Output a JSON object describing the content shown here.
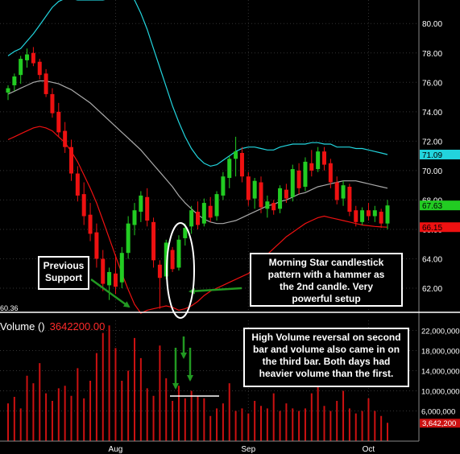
{
  "volume_label": "Volume ()",
  "volume_value": "3642200.00",
  "annotations": {
    "previous_support": "Previous\nSupport",
    "morning_star": "Morning Star candlestick\npattern with a hammer as\nthe 2nd candle.  Very\npowerful setup",
    "high_volume": "High Volume reversal on second\nbar and volume also came in on\nthe third bar.  Both days had\nheavier volume than the first."
  },
  "colors": {
    "up": "#22cc22",
    "down": "#ee1111",
    "upper_band": "#22d4dd",
    "middle_band": "#aaaaaa",
    "lower_band": "#ee1111",
    "volume": "#cc1111",
    "annotation_arrow": "#229922"
  },
  "chart_data": [
    {
      "type": "candlestick",
      "title": "",
      "overlay": "bollinger_bands",
      "ylim": [
        60.36,
        81.6
      ],
      "yticks": [
        "62.00",
        "64.00",
        "66.00",
        "68.00",
        "70.00",
        "72.00",
        "74.00",
        "76.00",
        "78.00",
        "80.00"
      ],
      "ytick_values": [
        62,
        64,
        66,
        68,
        70,
        72,
        74,
        76,
        78,
        80
      ],
      "price_tags": [
        {
          "label": "71.09",
          "value": 71.09,
          "color": "#22d4dd"
        },
        {
          "label": "67.63",
          "value": 67.63,
          "color": "#22cc22"
        },
        {
          "label": "66.15",
          "value": 66.15,
          "color": "#ee1111"
        }
      ],
      "support_level": {
        "label": "60.36",
        "value": 60.36
      },
      "x_labels": [
        {
          "label": "Aug",
          "index": 17
        },
        {
          "label": "Sep",
          "index": 38
        },
        {
          "label": "Oct",
          "index": 57
        }
      ],
      "candles": [
        {
          "o": 75.3,
          "h": 75.8,
          "l": 74.8,
          "c": 75.6
        },
        {
          "o": 75.8,
          "h": 76.6,
          "l": 75.4,
          "c": 76.4
        },
        {
          "o": 76.5,
          "h": 77.8,
          "l": 75.9,
          "c": 77.6
        },
        {
          "o": 77.5,
          "h": 78.3,
          "l": 77.0,
          "c": 77.9
        },
        {
          "o": 78.0,
          "h": 78.4,
          "l": 77.1,
          "c": 77.3
        },
        {
          "o": 77.4,
          "h": 77.6,
          "l": 76.2,
          "c": 76.5
        },
        {
          "o": 76.6,
          "h": 76.9,
          "l": 75.0,
          "c": 75.2
        },
        {
          "o": 75.2,
          "h": 75.6,
          "l": 73.6,
          "c": 73.9
        },
        {
          "o": 74.0,
          "h": 74.6,
          "l": 72.3,
          "c": 72.6
        },
        {
          "o": 72.7,
          "h": 73.3,
          "l": 71.2,
          "c": 71.6
        },
        {
          "o": 71.6,
          "h": 72.1,
          "l": 69.3,
          "c": 69.8
        },
        {
          "o": 69.8,
          "h": 70.3,
          "l": 67.9,
          "c": 68.3
        },
        {
          "o": 68.4,
          "h": 69.2,
          "l": 66.3,
          "c": 66.9
        },
        {
          "o": 67.0,
          "h": 67.8,
          "l": 65.2,
          "c": 65.7
        },
        {
          "o": 65.8,
          "h": 66.4,
          "l": 63.4,
          "c": 64.0
        },
        {
          "o": 64.0,
          "h": 64.6,
          "l": 61.8,
          "c": 62.3
        },
        {
          "o": 62.2,
          "h": 63.4,
          "l": 61.2,
          "c": 63.1
        },
        {
          "o": 63.0,
          "h": 64.3,
          "l": 61.6,
          "c": 62.1
        },
        {
          "o": 62.4,
          "h": 64.8,
          "l": 62.0,
          "c": 64.4
        },
        {
          "o": 64.4,
          "h": 66.9,
          "l": 64.0,
          "c": 66.4
        },
        {
          "o": 66.3,
          "h": 67.8,
          "l": 65.6,
          "c": 67.3
        },
        {
          "o": 67.2,
          "h": 68.6,
          "l": 66.5,
          "c": 68.3
        },
        {
          "o": 68.2,
          "h": 68.8,
          "l": 66.2,
          "c": 66.6
        },
        {
          "o": 66.5,
          "h": 66.8,
          "l": 63.4,
          "c": 63.9
        },
        {
          "o": 63.6,
          "h": 63.9,
          "l": 60.6,
          "c": 62.7
        },
        {
          "o": 62.8,
          "h": 65.3,
          "l": 62.6,
          "c": 65.1
        },
        {
          "o": 64.6,
          "h": 64.8,
          "l": 63.1,
          "c": 63.3
        },
        {
          "o": 63.4,
          "h": 65.6,
          "l": 63.2,
          "c": 65.3
        },
        {
          "o": 65.4,
          "h": 66.4,
          "l": 64.9,
          "c": 66.1
        },
        {
          "o": 66.2,
          "h": 67.6,
          "l": 65.7,
          "c": 67.3
        },
        {
          "o": 67.2,
          "h": 67.9,
          "l": 66.0,
          "c": 66.3
        },
        {
          "o": 66.4,
          "h": 68.1,
          "l": 66.2,
          "c": 67.8
        },
        {
          "o": 67.6,
          "h": 68.2,
          "l": 66.5,
          "c": 66.8
        },
        {
          "o": 66.9,
          "h": 68.6,
          "l": 66.6,
          "c": 68.4
        },
        {
          "o": 68.3,
          "h": 69.9,
          "l": 68.0,
          "c": 69.6
        },
        {
          "o": 69.5,
          "h": 71.0,
          "l": 68.8,
          "c": 70.8
        },
        {
          "o": 70.8,
          "h": 72.3,
          "l": 69.6,
          "c": 71.3
        },
        {
          "o": 71.2,
          "h": 71.6,
          "l": 69.2,
          "c": 69.6
        },
        {
          "o": 69.6,
          "h": 69.9,
          "l": 67.6,
          "c": 68.0
        },
        {
          "o": 68.1,
          "h": 69.5,
          "l": 67.4,
          "c": 69.3
        },
        {
          "o": 69.2,
          "h": 69.6,
          "l": 67.1,
          "c": 67.5
        },
        {
          "o": 67.4,
          "h": 68.3,
          "l": 66.8,
          "c": 67.9
        },
        {
          "o": 67.8,
          "h": 68.0,
          "l": 67.0,
          "c": 67.3
        },
        {
          "o": 67.4,
          "h": 69.0,
          "l": 67.1,
          "c": 68.8
        },
        {
          "o": 68.7,
          "h": 69.1,
          "l": 67.8,
          "c": 68.1
        },
        {
          "o": 68.2,
          "h": 70.4,
          "l": 67.9,
          "c": 70.1
        },
        {
          "o": 70.0,
          "h": 70.5,
          "l": 68.4,
          "c": 68.8
        },
        {
          "o": 68.9,
          "h": 70.9,
          "l": 68.6,
          "c": 70.6
        },
        {
          "o": 70.5,
          "h": 71.4,
          "l": 69.6,
          "c": 70.0
        },
        {
          "o": 70.1,
          "h": 71.6,
          "l": 69.9,
          "c": 71.3
        },
        {
          "o": 71.3,
          "h": 71.6,
          "l": 70.0,
          "c": 70.4
        },
        {
          "o": 70.5,
          "h": 70.8,
          "l": 68.8,
          "c": 69.2
        },
        {
          "o": 69.2,
          "h": 69.6,
          "l": 67.7,
          "c": 68.0
        },
        {
          "o": 68.1,
          "h": 69.3,
          "l": 67.6,
          "c": 69.0
        },
        {
          "o": 68.9,
          "h": 69.1,
          "l": 66.9,
          "c": 67.2
        },
        {
          "o": 67.3,
          "h": 67.6,
          "l": 66.2,
          "c": 66.5
        },
        {
          "o": 66.5,
          "h": 67.5,
          "l": 66.3,
          "c": 67.3
        },
        {
          "o": 67.3,
          "h": 67.8,
          "l": 66.6,
          "c": 66.9
        },
        {
          "o": 66.9,
          "h": 67.6,
          "l": 66.5,
          "c": 67.3
        },
        {
          "o": 67.2,
          "h": 67.4,
          "l": 66.1,
          "c": 66.4
        },
        {
          "o": 66.4,
          "h": 68.0,
          "l": 66.0,
          "c": 67.63
        }
      ],
      "upper_band": [
        77.8,
        78.1,
        78.3,
        78.8,
        79.3,
        79.9,
        80.5,
        81.1,
        81.5,
        81.7,
        81.7,
        81.6,
        81.6,
        81.6,
        81.6,
        81.6,
        81.7,
        81.7,
        81.8,
        81.9,
        81.6,
        80.7,
        79.6,
        78.3,
        77.0,
        75.7,
        74.4,
        73.3,
        72.3,
        71.5,
        70.9,
        70.5,
        70.3,
        70.4,
        70.7,
        71.0,
        71.3,
        71.5,
        71.6,
        71.6,
        71.5,
        71.4,
        71.4,
        71.6,
        71.7,
        71.8,
        71.8,
        71.8,
        71.9,
        71.9,
        71.8,
        71.8,
        71.6,
        71.6,
        71.6,
        71.5,
        71.5,
        71.4,
        71.3,
        71.2,
        71.09
      ],
      "middle_band": [
        75.2,
        75.4,
        75.6,
        75.8,
        76.0,
        76.1,
        76.1,
        76.0,
        75.9,
        75.7,
        75.5,
        75.2,
        74.9,
        74.6,
        74.2,
        73.8,
        73.4,
        73.0,
        72.6,
        72.2,
        71.8,
        71.4,
        70.9,
        70.4,
        69.9,
        69.4,
        68.9,
        68.3,
        67.8,
        67.4,
        67.0,
        66.7,
        66.5,
        66.4,
        66.4,
        66.5,
        66.6,
        66.8,
        67.0,
        67.2,
        67.4,
        67.6,
        67.7,
        67.9,
        68.0,
        68.2,
        68.4,
        68.5,
        68.7,
        68.9,
        69.0,
        69.1,
        69.2,
        69.3,
        69.3,
        69.3,
        69.2,
        69.1,
        69.0,
        68.9,
        68.8
      ],
      "lower_band": [
        72.1,
        72.3,
        72.5,
        72.7,
        72.9,
        73.0,
        72.9,
        72.7,
        72.3,
        71.9,
        71.3,
        70.6,
        69.7,
        68.8,
        67.8,
        66.6,
        65.4,
        64.2,
        63.0,
        61.9,
        60.9,
        60.3,
        60.5,
        60.6,
        60.7,
        60.8,
        60.7,
        60.5,
        60.6,
        60.8,
        61.1,
        61.5,
        61.8,
        62.0,
        62.2,
        62.4,
        62.6,
        62.8,
        63.0,
        63.4,
        63.8,
        64.3,
        64.7,
        65.1,
        65.5,
        65.8,
        66.1,
        66.4,
        66.6,
        66.8,
        66.9,
        66.8,
        66.7,
        66.6,
        66.5,
        66.4,
        66.3,
        66.25,
        66.2,
        66.17,
        66.15
      ]
    },
    {
      "type": "bar",
      "title": "Volume ()",
      "ylim": [
        0,
        24000000
      ],
      "yticks": [
        "22,000,000",
        "18,000,000",
        "14,000,000",
        "10,000,000",
        "6,000,000"
      ],
      "ytick_values": [
        22000000,
        18000000,
        14000000,
        10000000,
        6000000
      ],
      "last_value_tag": {
        "label": "3,642,200",
        "value": 3642200
      },
      "values": [
        7500000,
        8800000,
        6500000,
        13000000,
        11500000,
        15500000,
        9500000,
        8000000,
        10500000,
        11000000,
        9000000,
        14500000,
        8500000,
        12000000,
        17500000,
        21500000,
        23000000,
        18500000,
        12000000,
        14000000,
        20500000,
        16500000,
        10500000,
        9000000,
        19000000,
        12500000,
        8000000,
        11000000,
        8500000,
        10000000,
        9000000,
        8500000,
        5000000,
        6500000,
        7500000,
        11500000,
        6000000,
        6500000,
        5500000,
        8000000,
        7000000,
        6500000,
        9500000,
        6000000,
        7500000,
        6500000,
        6000000,
        6500000,
        9500000,
        12500000,
        7000000,
        6000000,
        8000000,
        10000000,
        6500000,
        5500000,
        6000000,
        8500000,
        6000000,
        5000000,
        3642200
      ]
    }
  ]
}
